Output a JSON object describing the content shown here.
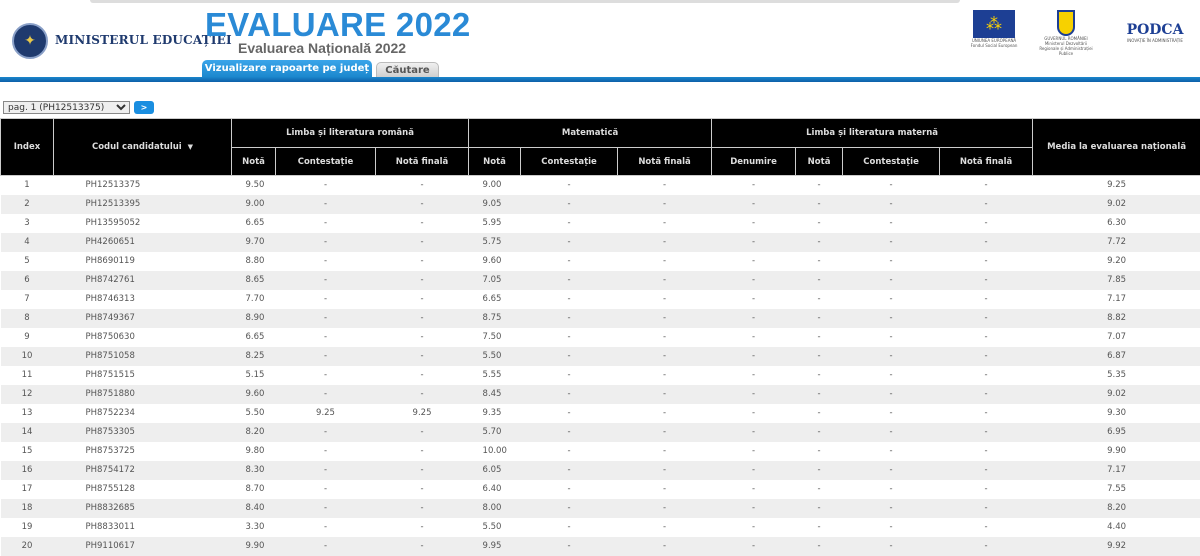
{
  "header": {
    "ministry": "MINISTERUL EDUCAȚIEI",
    "title": "EVALUARE 2022",
    "subtitle": "Evaluarea Națională 2022",
    "tabs": [
      {
        "label": "Vizualizare rapoarte pe județ",
        "active": true
      },
      {
        "label": "Căutare",
        "active": false
      }
    ],
    "logos": {
      "eu": "UNIUNEA EUROPEANĂ Fondul Social European",
      "gov": "GUVERNUL ROMÂNIEI Ministerul Dezvoltării Regionale și Administrației Publice",
      "podca": "PODCA",
      "podca_tag": "INOVAȚIE ÎN ADMINISTRAȚIE"
    },
    "accent": "#1a86cc"
  },
  "pager": {
    "selected": "pag. 1 (PH12513375)",
    "go_label": ">"
  },
  "table": {
    "headers": {
      "index": "Index",
      "code": "Codul candidatului",
      "romana": "Limba și literatura română",
      "mate": "Matematică",
      "materna": "Limba și literatura maternă",
      "media": "Media la evaluarea națională",
      "nota": "Notă",
      "contestatie": "Contestație",
      "nota_finala": "Notă finală",
      "denumire": "Denumire",
      "sort_icon": "▼"
    },
    "rows": [
      [
        "1",
        "PH12513375",
        "9.50",
        "-",
        "-",
        "9.00",
        "-",
        "-",
        "-",
        "-",
        "-",
        "-",
        "9.25"
      ],
      [
        "2",
        "PH12513395",
        "9.00",
        "-",
        "-",
        "9.05",
        "-",
        "-",
        "-",
        "-",
        "-",
        "-",
        "9.02"
      ],
      [
        "3",
        "PH13595052",
        "6.65",
        "-",
        "-",
        "5.95",
        "-",
        "-",
        "-",
        "-",
        "-",
        "-",
        "6.30"
      ],
      [
        "4",
        "PH4260651",
        "9.70",
        "-",
        "-",
        "5.75",
        "-",
        "-",
        "-",
        "-",
        "-",
        "-",
        "7.72"
      ],
      [
        "5",
        "PH8690119",
        "8.80",
        "-",
        "-",
        "9.60",
        "-",
        "-",
        "-",
        "-",
        "-",
        "-",
        "9.20"
      ],
      [
        "6",
        "PH8742761",
        "8.65",
        "-",
        "-",
        "7.05",
        "-",
        "-",
        "-",
        "-",
        "-",
        "-",
        "7.85"
      ],
      [
        "7",
        "PH8746313",
        "7.70",
        "-",
        "-",
        "6.65",
        "-",
        "-",
        "-",
        "-",
        "-",
        "-",
        "7.17"
      ],
      [
        "8",
        "PH8749367",
        "8.90",
        "-",
        "-",
        "8.75",
        "-",
        "-",
        "-",
        "-",
        "-",
        "-",
        "8.82"
      ],
      [
        "9",
        "PH8750630",
        "6.65",
        "-",
        "-",
        "7.50",
        "-",
        "-",
        "-",
        "-",
        "-",
        "-",
        "7.07"
      ],
      [
        "10",
        "PH8751058",
        "8.25",
        "-",
        "-",
        "5.50",
        "-",
        "-",
        "-",
        "-",
        "-",
        "-",
        "6.87"
      ],
      [
        "11",
        "PH8751515",
        "5.15",
        "-",
        "-",
        "5.55",
        "-",
        "-",
        "-",
        "-",
        "-",
        "-",
        "5.35"
      ],
      [
        "12",
        "PH8751880",
        "9.60",
        "-",
        "-",
        "8.45",
        "-",
        "-",
        "-",
        "-",
        "-",
        "-",
        "9.02"
      ],
      [
        "13",
        "PH8752234",
        "5.50",
        "9.25",
        "9.25",
        "9.35",
        "-",
        "-",
        "-",
        "-",
        "-",
        "-",
        "9.30"
      ],
      [
        "14",
        "PH8753305",
        "8.20",
        "-",
        "-",
        "5.70",
        "-",
        "-",
        "-",
        "-",
        "-",
        "-",
        "6.95"
      ],
      [
        "15",
        "PH8753725",
        "9.80",
        "-",
        "-",
        "10.00",
        "-",
        "-",
        "-",
        "-",
        "-",
        "-",
        "9.90"
      ],
      [
        "16",
        "PH8754172",
        "8.30",
        "-",
        "-",
        "6.05",
        "-",
        "-",
        "-",
        "-",
        "-",
        "-",
        "7.17"
      ],
      [
        "17",
        "PH8755128",
        "8.70",
        "-",
        "-",
        "6.40",
        "-",
        "-",
        "-",
        "-",
        "-",
        "-",
        "7.55"
      ],
      [
        "18",
        "PH8832685",
        "8.40",
        "-",
        "-",
        "8.00",
        "-",
        "-",
        "-",
        "-",
        "-",
        "-",
        "8.20"
      ],
      [
        "19",
        "PH8833011",
        "3.30",
        "-",
        "-",
        "5.50",
        "-",
        "-",
        "-",
        "-",
        "-",
        "-",
        "4.40"
      ],
      [
        "20",
        "PH9110617",
        "9.90",
        "-",
        "-",
        "9.95",
        "-",
        "-",
        "-",
        "-",
        "-",
        "-",
        "9.92"
      ]
    ]
  }
}
